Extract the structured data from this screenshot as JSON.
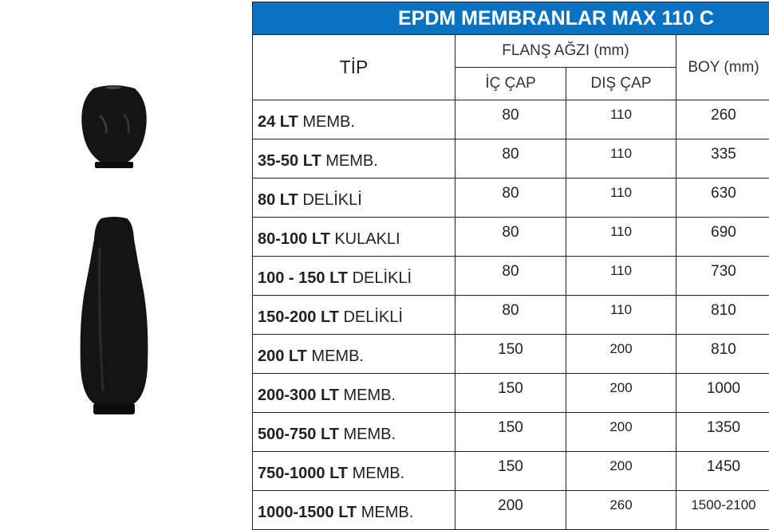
{
  "title": "EPDM MEMBRANLAR  MAX 110 C",
  "headers": {
    "tip": "TİP",
    "flange": "FLANŞ AĞZI (mm)",
    "inner": "İÇ ÇAP",
    "outer": "DIŞ ÇAP",
    "length": "BOY (mm)"
  },
  "rows": [
    {
      "bold": "24 LT",
      "rest": " MEMB.",
      "inner": "80",
      "outer": "110",
      "length": "260"
    },
    {
      "bold": "35-50  LT",
      "rest": " MEMB.",
      "inner": "80",
      "outer": "110",
      "length": "335"
    },
    {
      "bold": "80 LT",
      "rest": " DELİKLİ",
      "inner": "80",
      "outer": "110",
      "length": "630"
    },
    {
      "bold": "80-100 LT",
      "rest": " KULAKLI",
      "inner": "80",
      "outer": "110",
      "length": "690"
    },
    {
      "bold": "100 - 150 LT",
      "rest": " DELİKLİ",
      "inner": "80",
      "outer": "110",
      "length": "730"
    },
    {
      "bold": "150-200 LT",
      "rest": " DELİKLİ",
      "inner": "80",
      "outer": "110",
      "length": "810"
    },
    {
      "bold": "200 LT",
      "rest": "  MEMB.",
      "inner": "150",
      "outer": "200",
      "length": "810"
    },
    {
      "bold": "200-300 LT",
      "rest": " MEMB.",
      "inner": "150",
      "outer": "200",
      "length": "1000"
    },
    {
      "bold": "500-750 LT",
      "rest": " MEMB.",
      "inner": "150",
      "outer": "200",
      "length": "1350"
    },
    {
      "bold": "750-1000 LT",
      "rest": " MEMB.",
      "inner": "150",
      "outer": "200",
      "length": "1450"
    },
    {
      "bold": "1000-1500 LT",
      "rest": " MEMB.",
      "inner": "200",
      "outer": "260",
      "length": "1500-2100"
    }
  ],
  "colors": {
    "title_bg": "#0a72c2",
    "membrane": "#111111"
  }
}
